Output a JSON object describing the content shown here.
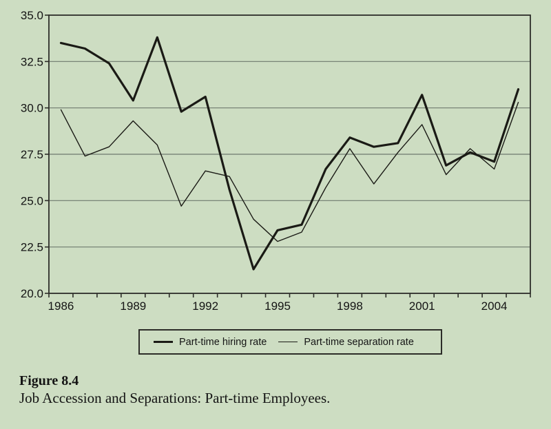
{
  "chart_data": {
    "type": "line",
    "x": [
      1986,
      1987,
      1988,
      1989,
      1990,
      1991,
      1992,
      1993,
      1994,
      1995,
      1996,
      1997,
      1998,
      1999,
      2000,
      2001,
      2002,
      2003,
      2004,
      2005
    ],
    "series": [
      {
        "name": "Part-time hiring rate",
        "weight": "thick",
        "values": [
          33.5,
          33.2,
          32.4,
          30.4,
          33.8,
          29.8,
          30.6,
          25.6,
          21.3,
          23.4,
          23.7,
          26.7,
          28.4,
          27.9,
          28.1,
          30.7,
          26.9,
          27.6,
          27.1,
          31.0
        ]
      },
      {
        "name": "Part-time separation rate",
        "weight": "thin",
        "values": [
          29.9,
          27.4,
          27.9,
          29.3,
          28.0,
          24.7,
          26.6,
          26.3,
          24.0,
          22.8,
          23.3,
          25.7,
          27.8,
          25.9,
          27.6,
          29.1,
          26.4,
          27.8,
          26.7,
          30.3
        ]
      }
    ],
    "ylim": [
      20.0,
      35.0
    ],
    "ytick_values": [
      35.0,
      32.5,
      30.0,
      27.5,
      25.0,
      22.5,
      20.0
    ],
    "ytick_labels": [
      "35.0",
      "32.5",
      "30.0",
      "27.5",
      "25.0",
      "22.5",
      "20.0"
    ],
    "xtick_years": [
      1986,
      1989,
      1992,
      1995,
      1998,
      2001,
      2004
    ],
    "xtick_labels": [
      "1986",
      "1989",
      "1992",
      "1995",
      "1998",
      "2001",
      "2004"
    ],
    "grid": true,
    "legend_position": "bottom",
    "title": "",
    "xlabel": "",
    "ylabel": ""
  },
  "legend": {
    "items": [
      {
        "label": "Part-time hiring rate"
      },
      {
        "label": "Part-time separation rate"
      }
    ]
  },
  "caption": {
    "title": "Figure 8.4",
    "text": "Job Accession and Separations: Part-time Employees."
  },
  "colors": {
    "background": "#cdddc2",
    "line": "#1a1a15",
    "grid": "#6e7a6e",
    "frame": "#2c2c28",
    "text": "#141414"
  }
}
